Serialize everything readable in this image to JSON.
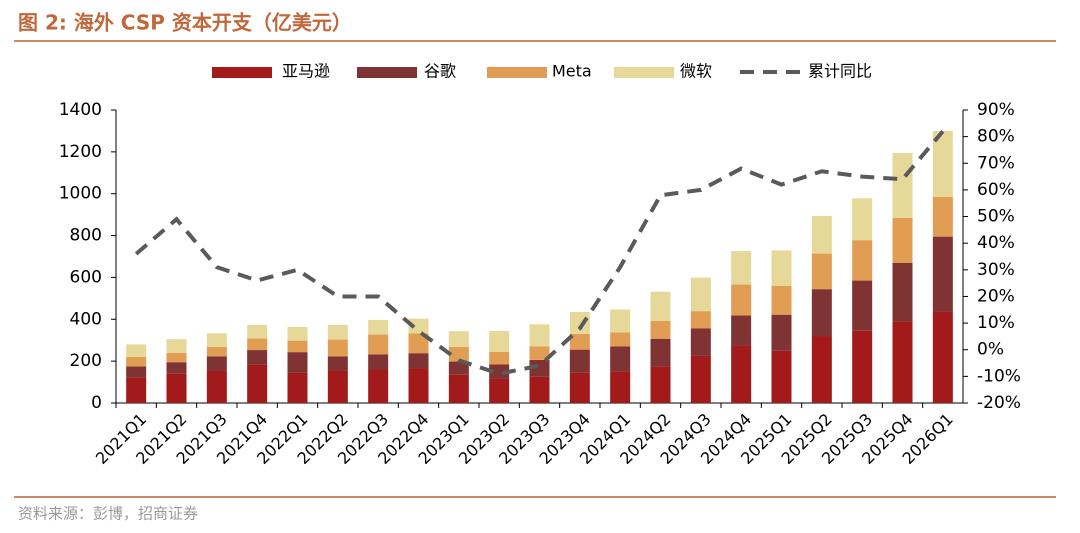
{
  "title": "图 2: 海外 CSP 资本开支（亿美元）",
  "source": "资料来源：彭博，招商证券",
  "chart_data": {
    "type": "bar",
    "stacked": true,
    "categories": [
      "2021Q1",
      "2021Q2",
      "2021Q3",
      "2021Q4",
      "2022Q1",
      "2022Q2",
      "2022Q3",
      "2022Q4",
      "2023Q1",
      "2023Q2",
      "2023Q3",
      "2023Q4",
      "2024Q1",
      "2024Q2",
      "2024Q3",
      "2024Q4",
      "2025Q1",
      "2025Q2",
      "2025Q3",
      "2025Q4",
      "2026Q1"
    ],
    "series": [
      {
        "name": "亚马逊",
        "color": "#a31a1a",
        "values": [
          120,
          140,
          155,
          185,
          145,
          155,
          160,
          165,
          135,
          115,
          125,
          145,
          150,
          175,
          225,
          275,
          250,
          320,
          345,
          390,
          435
        ]
      },
      {
        "name": "谷歌",
        "color": "#7f3333",
        "values": [
          55,
          55,
          68,
          68,
          98,
          68,
          72,
          73,
          63,
          69,
          81,
          110,
          120,
          132,
          131,
          143,
          172,
          224,
          240,
          280,
          360
        ]
      },
      {
        "name": "Meta",
        "color": "#e29d55",
        "values": [
          45,
          45,
          45,
          55,
          55,
          80,
          95,
          95,
          70,
          60,
          65,
          75,
          67,
          85,
          83,
          148,
          137,
          170,
          193,
          215,
          190
        ]
      },
      {
        "name": "微软",
        "color": "#e6d898",
        "values": [
          60,
          65,
          65,
          65,
          65,
          70,
          70,
          70,
          75,
          100,
          105,
          105,
          110,
          140,
          160,
          160,
          170,
          180,
          200,
          310,
          315
        ]
      },
      {
        "name": "累计同比",
        "type": "line",
        "axis": "y2",
        "color": "#5a5a5a",
        "values": [
          36,
          49,
          31,
          26,
          30,
          20,
          20,
          7,
          -4,
          -9,
          -6,
          8,
          31,
          58,
          60,
          68,
          62,
          67,
          65,
          64,
          82
        ]
      }
    ],
    "ylim": [
      0,
      1400
    ],
    "yticks": [
      0,
      200,
      400,
      600,
      800,
      1000,
      1200,
      1400
    ],
    "y2lim": [
      -20,
      90
    ],
    "y2ticks": [
      {
        "value": -20,
        "label": "-20%"
      },
      {
        "value": -10,
        "label": "-10%"
      },
      {
        "value": 0,
        "label": "0%"
      },
      {
        "value": 10,
        "label": "10%"
      },
      {
        "value": 20,
        "label": "20%"
      },
      {
        "value": 30,
        "label": "30%"
      },
      {
        "value": 40,
        "label": "40%"
      },
      {
        "value": 50,
        "label": "50%"
      },
      {
        "value": 60,
        "label": "60%"
      },
      {
        "value": 70,
        "label": "70%"
      },
      {
        "value": 80,
        "label": "80%"
      },
      {
        "value": 90,
        "label": "90%"
      }
    ],
    "legend": "top",
    "grid": false
  }
}
